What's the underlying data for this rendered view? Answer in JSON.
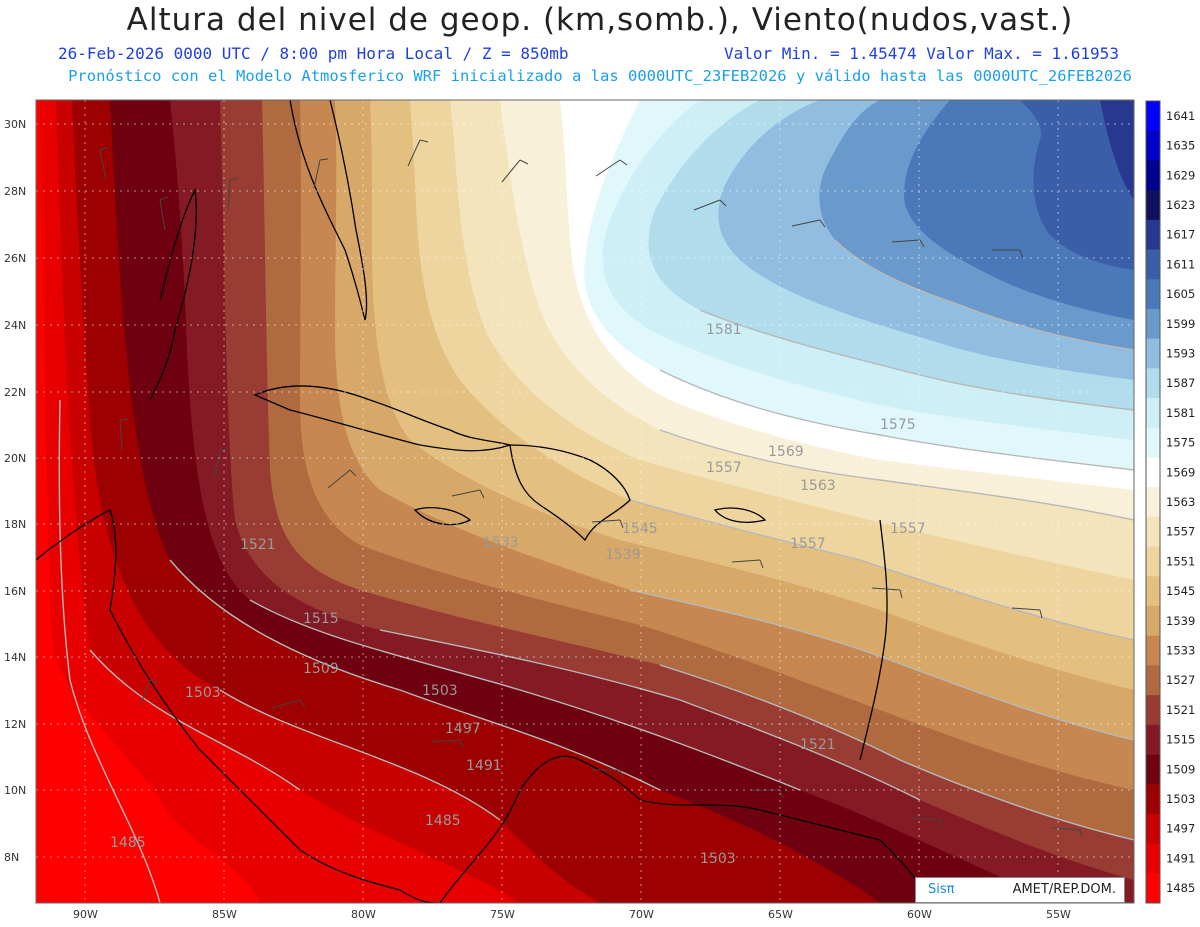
{
  "header": {
    "title": "Altura del nivel de geop. (km,somb.), Viento(nudos,vast.)",
    "line1_left": "26-Feb-2026  0000 UTC / 8:00 pm Hora Local / Z = 850mb",
    "line1_right": "Valor Min. = 1.45474  Valor Max. = 1.61953",
    "line2": "Pronóstico con el Modelo Atmosferico WRF inicializado a las 0000UTC_23FEB2026 y válido hasta las  0000UTC_26FEB2026"
  },
  "map": {
    "lat_labels": [
      "30N",
      "28N",
      "26N",
      "24N",
      "22N",
      "20N",
      "18N",
      "16N",
      "14N",
      "12N",
      "10N",
      "8N"
    ],
    "lon_labels": [
      "90W",
      "85W",
      "80W",
      "75W",
      "70W",
      "65W",
      "60W",
      "55W"
    ],
    "contour_labels": [
      "1485",
      "1485",
      "1491",
      "1497",
      "1503",
      "1503",
      "1503",
      "1509",
      "1515",
      "1521",
      "1521",
      "1533",
      "1539",
      "1545",
      "1557",
      "1557",
      "1557",
      "1563",
      "1569",
      "1575",
      "1581"
    ]
  },
  "colorbar": {
    "levels": [
      "1641",
      "1635",
      "1629",
      "1623",
      "1617",
      "1611",
      "1605",
      "1599",
      "1593",
      "1587",
      "1581",
      "1575",
      "1569",
      "1563",
      "1557",
      "1551",
      "1545",
      "1539",
      "1533",
      "1527",
      "1521",
      "1515",
      "1509",
      "1503",
      "1497",
      "1491",
      "1485"
    ],
    "colors": [
      "#0000ff",
      "#0000c8",
      "#00008f",
      "#101060",
      "#283890",
      "#3a5ea8",
      "#4a78b8",
      "#6a9acc",
      "#90bde0",
      "#b0dcec",
      "#cdeff5",
      "#e0f7fb",
      "#ffffff",
      "#f8f0d8",
      "#f3e4bb",
      "#eed49e",
      "#e4c080",
      "#d8a868",
      "#c68850",
      "#b06a40",
      "#983c34",
      "#841a24",
      "#6e0010",
      "#9c0000",
      "#c80000",
      "#e80000",
      "#ff0000"
    ]
  },
  "footer": {
    "brand": "Sisπ",
    "org": "AMET/REP.DOM."
  }
}
